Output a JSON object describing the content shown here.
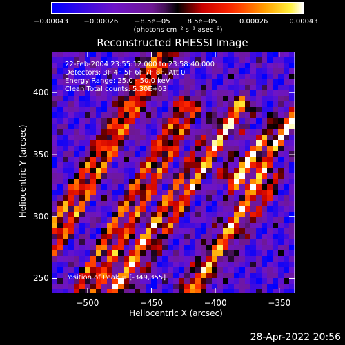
{
  "colorbar": {
    "ticks": [
      "−0.00043",
      "−0.00026",
      "−8.5e−05",
      "8.5e−05",
      "0.00026",
      "0.00043"
    ],
    "tick_values": [
      -0.00043,
      -0.00026,
      -8.5e-05,
      8.5e-05,
      0.00026,
      0.00043
    ],
    "range": [
      -0.00043,
      0.00043
    ],
    "unit_label": "(photons cm⁻² s⁻¹ asec⁻²)"
  },
  "annotations": {
    "time_range": "22-Feb-2004 23:55:12.000 to 23:58:40.000",
    "detectors": "Detectors: 3F 4F 5F 6F 7F 8F, Att 0",
    "energy_range": "Energy Range: 25.0 - 50.0 keV",
    "clean_counts": "Clean     Total counts: 5.30E+03",
    "peak": "Position of Peak = [-349,355]"
  },
  "timestamp": "28-Apr-2022 20:56",
  "chart_data": {
    "type": "heatmap",
    "title": "Reconstructed RHESSI Image",
    "xlabel": "Heliocentric X (arcsec)",
    "ylabel": "Heliocentric Y (arcsec)",
    "xlim": [
      -528,
      -338
    ],
    "ylim": [
      238,
      433
    ],
    "x_ticks": [
      -500,
      -450,
      -400,
      -350
    ],
    "y_ticks": [
      250,
      300,
      350,
      400
    ],
    "x_tick_labels": [
      "−500",
      "−450",
      "−400",
      "−350"
    ],
    "y_tick_labels": [
      "250",
      "300",
      "350",
      "400"
    ],
    "peak_position": [
      -349,
      355
    ],
    "colormap": "rainbow (blue-purple-red-orange-yellow-white)",
    "ridges": [
      {
        "x0": -528,
        "y0": 280,
        "x1": -440,
        "y1": 433,
        "amp": 0.9
      },
      {
        "x0": -500,
        "y0": 245,
        "x1": -420,
        "y1": 390,
        "amp": 0.8
      },
      {
        "x0": -480,
        "y0": 238,
        "x1": -380,
        "y1": 390,
        "amp": 0.85
      },
      {
        "x0": -420,
        "y0": 238,
        "x1": -360,
        "y1": 330,
        "amp": 0.85
      },
      {
        "x0": -385,
        "y0": 330,
        "x1": -338,
        "y1": 380,
        "amp": 0.95
      }
    ]
  }
}
